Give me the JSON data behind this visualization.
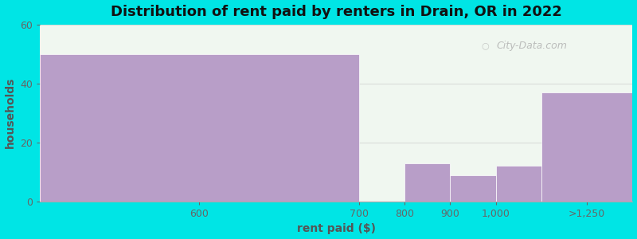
{
  "title": "Distribution of rent paid by renters in Drain, OR in 2022",
  "xlabel": "rent paid ($)",
  "ylabel": "households",
  "bar_color": "#b89ec8",
  "bg_outer": "#00e5e5",
  "bg_inner_gradient_top": "#eaf5ea",
  "bg_inner": "#f0f7f0",
  "ylim": [
    0,
    60
  ],
  "yticks": [
    0,
    20,
    40,
    60
  ],
  "watermark": "City-Data.com",
  "tick_labels": [
    "600",
    "700",
    "800",
    "900",
    "1,000",
    ">1,250"
  ],
  "tick_color": "#666666",
  "label_color": "#555555",
  "title_color": "#111111",
  "bar_edges": [
    0,
    700,
    800,
    900,
    1000,
    1100,
    1300
  ],
  "bar_values": [
    50,
    0,
    13,
    9,
    12,
    37
  ]
}
